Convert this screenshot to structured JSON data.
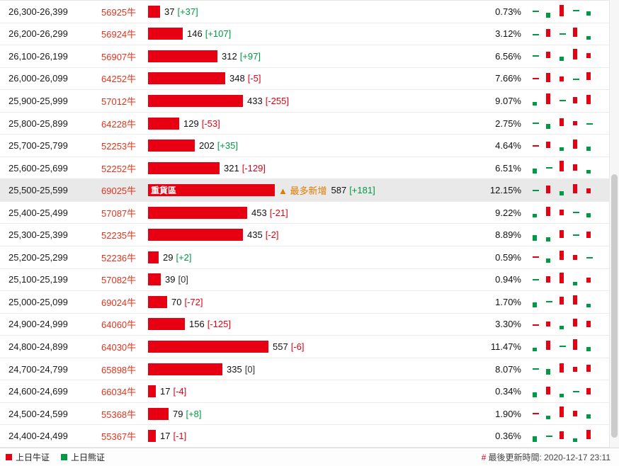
{
  "colors": {
    "bull_red": "#e60012",
    "bear_green": "#009944",
    "change_up": "#009944",
    "change_down": "#e60012",
    "change_zero": "#333333",
    "code_red": "#e2341b",
    "annotation_orange": "#e07b00",
    "highlight_row_bg": "#e9e9e9"
  },
  "table": {
    "heavy_zone_label": "重貨區",
    "max_new_label": "▲ 最多新增",
    "max_value": 587,
    "rows": [
      {
        "range": "26,300-26,399",
        "code": "56925牛",
        "value": 37,
        "change": "[+37]",
        "percent": "0.73%",
        "highlight": false,
        "spark": [
          {
            "c": "g",
            "y": 12,
            "h": 2
          },
          {
            "c": "g",
            "y": 15,
            "h": 7
          },
          {
            "c": "r",
            "y": 4,
            "h": 16
          },
          {
            "c": "g",
            "y": 11,
            "h": 2
          },
          {
            "c": "g",
            "y": 13,
            "h": 6
          }
        ]
      },
      {
        "range": "26,200-26,299",
        "code": "56924牛",
        "value": 146,
        "change": "[+107]",
        "percent": "3.12%",
        "highlight": false,
        "spark": [
          {
            "c": "g",
            "y": 13,
            "h": 2
          },
          {
            "c": "r",
            "y": 6,
            "h": 11
          },
          {
            "c": "g",
            "y": 12,
            "h": 2
          },
          {
            "c": "r",
            "y": 4,
            "h": 13
          },
          {
            "c": "g",
            "y": 16,
            "h": 5
          }
        ]
      },
      {
        "range": "26,100-26,199",
        "code": "56907牛",
        "value": 312,
        "change": "[+97]",
        "percent": "6.56%",
        "highlight": false,
        "spark": [
          {
            "c": "g",
            "y": 12,
            "h": 2
          },
          {
            "c": "r",
            "y": 7,
            "h": 9
          },
          {
            "c": "g",
            "y": 14,
            "h": 6
          },
          {
            "c": "r",
            "y": 3,
            "h": 15
          },
          {
            "c": "r",
            "y": 9,
            "h": 7
          }
        ]
      },
      {
        "range": "26,000-26,099",
        "code": "64252牛",
        "value": 348,
        "change": "[-5]",
        "percent": "7.66%",
        "highlight": false,
        "spark": [
          {
            "c": "r",
            "y": 12,
            "h": 2
          },
          {
            "c": "r",
            "y": 5,
            "h": 13
          },
          {
            "c": "r",
            "y": 10,
            "h": 7
          },
          {
            "c": "g",
            "y": 13,
            "h": 2
          },
          {
            "c": "r",
            "y": 4,
            "h": 11
          }
        ]
      },
      {
        "range": "25,900-25,999",
        "code": "57012牛",
        "value": 433,
        "change": "[-255]",
        "percent": "9.07%",
        "highlight": false,
        "spark": [
          {
            "c": "g",
            "y": 15,
            "h": 5
          },
          {
            "c": "r",
            "y": 3,
            "h": 15
          },
          {
            "c": "g",
            "y": 12,
            "h": 2
          },
          {
            "c": "r",
            "y": 8,
            "h": 9
          },
          {
            "c": "r",
            "y": 5,
            "h": 13
          }
        ]
      },
      {
        "range": "25,800-25,899",
        "code": "64228牛",
        "value": 129,
        "change": "[-53]",
        "percent": "2.75%",
        "highlight": false,
        "spark": [
          {
            "c": "g",
            "y": 12,
            "h": 2
          },
          {
            "c": "g",
            "y": 14,
            "h": 7
          },
          {
            "c": "r",
            "y": 6,
            "h": 11
          },
          {
            "c": "r",
            "y": 10,
            "h": 6
          },
          {
            "c": "g",
            "y": 13,
            "h": 2
          }
        ]
      },
      {
        "range": "25,700-25,799",
        "code": "52253牛",
        "value": 202,
        "change": "[+35]",
        "percent": "4.64%",
        "highlight": false,
        "spark": [
          {
            "c": "r",
            "y": 12,
            "h": 2
          },
          {
            "c": "r",
            "y": 7,
            "h": 9
          },
          {
            "c": "g",
            "y": 15,
            "h": 5
          },
          {
            "c": "r",
            "y": 4,
            "h": 13
          },
          {
            "c": "g",
            "y": 14,
            "h": 6
          }
        ]
      },
      {
        "range": "25,600-25,699",
        "code": "52252牛",
        "value": 321,
        "change": "[-129]",
        "percent": "6.51%",
        "highlight": false,
        "spark": [
          {
            "c": "g",
            "y": 14,
            "h": 7
          },
          {
            "c": "g",
            "y": 12,
            "h": 2
          },
          {
            "c": "r",
            "y": 3,
            "h": 15
          },
          {
            "c": "r",
            "y": 8,
            "h": 9
          },
          {
            "c": "g",
            "y": 16,
            "h": 5
          }
        ]
      },
      {
        "range": "25,500-25,599",
        "code": "69025牛",
        "value": 587,
        "change": "[+181]",
        "percent": "12.15%",
        "highlight": true,
        "spark": [
          {
            "c": "g",
            "y": 12,
            "h": 2
          },
          {
            "c": "r",
            "y": 6,
            "h": 11
          },
          {
            "c": "g",
            "y": 14,
            "h": 6
          },
          {
            "c": "r",
            "y": 4,
            "h": 13
          },
          {
            "c": "r",
            "y": 10,
            "h": 7
          }
        ]
      },
      {
        "range": "25,400-25,499",
        "code": "57087牛",
        "value": 453,
        "change": "[-21]",
        "percent": "9.22%",
        "highlight": false,
        "spark": [
          {
            "c": "g",
            "y": 15,
            "h": 5
          },
          {
            "c": "r",
            "y": 5,
            "h": 13
          },
          {
            "c": "r",
            "y": 9,
            "h": 8
          },
          {
            "c": "g",
            "y": 12,
            "h": 2
          },
          {
            "c": "g",
            "y": 14,
            "h": 6
          }
        ]
      },
      {
        "range": "25,300-25,399",
        "code": "52235牛",
        "value": 435,
        "change": "[-2]",
        "percent": "8.89%",
        "highlight": false,
        "spark": [
          {
            "c": "g",
            "y": 13,
            "h": 8
          },
          {
            "c": "g",
            "y": 16,
            "h": 6
          },
          {
            "c": "r",
            "y": 6,
            "h": 11
          },
          {
            "c": "g",
            "y": 12,
            "h": 2
          },
          {
            "c": "r",
            "y": 8,
            "h": 9
          }
        ]
      },
      {
        "range": "25,200-25,299",
        "code": "52236牛",
        "value": 29,
        "change": "[+2]",
        "percent": "0.59%",
        "highlight": false,
        "spark": [
          {
            "c": "r",
            "y": 12,
            "h": 2
          },
          {
            "c": "g",
            "y": 15,
            "h": 6
          },
          {
            "c": "r",
            "y": 4,
            "h": 13
          },
          {
            "c": "r",
            "y": 10,
            "h": 7
          },
          {
            "c": "g",
            "y": 13,
            "h": 2
          }
        ]
      },
      {
        "range": "25,100-25,199",
        "code": "57082牛",
        "value": 39,
        "change": "[0]",
        "percent": "0.94%",
        "highlight": false,
        "spark": [
          {
            "c": "g",
            "y": 12,
            "h": 2
          },
          {
            "c": "r",
            "y": 8,
            "h": 9
          },
          {
            "c": "r",
            "y": 3,
            "h": 15
          },
          {
            "c": "g",
            "y": 16,
            "h": 5
          },
          {
            "c": "r",
            "y": 10,
            "h": 7
          }
        ]
      },
      {
        "range": "25,000-25,099",
        "code": "69024牛",
        "value": 70,
        "change": "[-72]",
        "percent": "1.70%",
        "highlight": false,
        "spark": [
          {
            "c": "g",
            "y": 14,
            "h": 7
          },
          {
            "c": "g",
            "y": 12,
            "h": 2
          },
          {
            "c": "r",
            "y": 6,
            "h": 11
          },
          {
            "c": "r",
            "y": 4,
            "h": 13
          },
          {
            "c": "g",
            "y": 16,
            "h": 5
          }
        ]
      },
      {
        "range": "24,900-24,999",
        "code": "64060牛",
        "value": 156,
        "change": "[-125]",
        "percent": "3.30%",
        "highlight": false,
        "spark": [
          {
            "c": "r",
            "y": 13,
            "h": 2
          },
          {
            "c": "r",
            "y": 9,
            "h": 7
          },
          {
            "c": "g",
            "y": 15,
            "h": 5
          },
          {
            "c": "r",
            "y": 5,
            "h": 11
          },
          {
            "c": "r",
            "y": 8,
            "h": 9
          }
        ]
      },
      {
        "range": "24,800-24,899",
        "code": "64030牛",
        "value": 557,
        "change": "[-6]",
        "percent": "11.47%",
        "highlight": false,
        "spark": [
          {
            "c": "g",
            "y": 15,
            "h": 5
          },
          {
            "c": "r",
            "y": 5,
            "h": 13
          },
          {
            "c": "g",
            "y": 12,
            "h": 2
          },
          {
            "c": "r",
            "y": 3,
            "h": 15
          },
          {
            "c": "g",
            "y": 14,
            "h": 6
          }
        ]
      },
      {
        "range": "24,700-24,799",
        "code": "65898牛",
        "value": 335,
        "change": "[0]",
        "percent": "8.07%",
        "highlight": false,
        "spark": [
          {
            "c": "g",
            "y": 12,
            "h": 2
          },
          {
            "c": "g",
            "y": 13,
            "h": 8
          },
          {
            "c": "r",
            "y": 5,
            "h": 13
          },
          {
            "c": "r",
            "y": 10,
            "h": 7
          },
          {
            "c": "r",
            "y": 7,
            "h": 10
          }
        ]
      },
      {
        "range": "24,600-24,699",
        "code": "66034牛",
        "value": 17,
        "change": "[-4]",
        "percent": "0.34%",
        "highlight": false,
        "spark": [
          {
            "c": "g",
            "y": 14,
            "h": 7
          },
          {
            "c": "r",
            "y": 6,
            "h": 11
          },
          {
            "c": "g",
            "y": 16,
            "h": 5
          },
          {
            "c": "g",
            "y": 12,
            "h": 2
          },
          {
            "c": "r",
            "y": 8,
            "h": 9
          }
        ]
      },
      {
        "range": "24,500-24,599",
        "code": "55368牛",
        "value": 79,
        "change": "[+8]",
        "percent": "1.90%",
        "highlight": false,
        "spark": [
          {
            "c": "r",
            "y": 12,
            "h": 2
          },
          {
            "c": "g",
            "y": 16,
            "h": 5
          },
          {
            "c": "r",
            "y": 3,
            "h": 15
          },
          {
            "c": "r",
            "y": 9,
            "h": 8
          },
          {
            "c": "g",
            "y": 14,
            "h": 6
          }
        ]
      },
      {
        "range": "24,400-24,499",
        "code": "55367牛",
        "value": 17,
        "change": "[-1]",
        "percent": "0.36%",
        "highlight": false,
        "spark": [
          {
            "c": "g",
            "y": 13,
            "h": 8
          },
          {
            "c": "g",
            "y": 12,
            "h": 2
          },
          {
            "c": "r",
            "y": 6,
            "h": 11
          },
          {
            "c": "g",
            "y": 16,
            "h": 5
          },
          {
            "c": "r",
            "y": 4,
            "h": 13
          }
        ]
      }
    ]
  },
  "footer": {
    "legend": [
      {
        "label": "上日牛证",
        "color": "#e60012"
      },
      {
        "label": "上日熊证",
        "color": "#009944"
      }
    ],
    "hash": "#",
    "updated": "最後更新時間: 2020-12-17 23:11"
  },
  "chart_data": {
    "type": "bar",
    "orientation": "horizontal",
    "title": "",
    "categories": [
      "26,300-26,399",
      "26,200-26,299",
      "26,100-26,199",
      "26,000-26,099",
      "25,900-25,999",
      "25,800-25,899",
      "25,700-25,799",
      "25,600-25,699",
      "25,500-25,599",
      "25,400-25,499",
      "25,300-25,399",
      "25,200-25,299",
      "25,100-25,199",
      "25,000-25,099",
      "24,900-24,999",
      "24,800-24,899",
      "24,700-24,799",
      "24,600-24,699",
      "24,500-24,599",
      "24,400-24,499"
    ],
    "values": [
      37,
      146,
      312,
      348,
      433,
      129,
      202,
      321,
      587,
      453,
      435,
      29,
      39,
      70,
      156,
      557,
      335,
      17,
      79,
      17
    ],
    "changes": [
      37,
      107,
      97,
      -5,
      -255,
      -53,
      35,
      -129,
      181,
      -21,
      -2,
      2,
      0,
      -72,
      -125,
      -6,
      0,
      -4,
      8,
      -1
    ],
    "percents": [
      0.73,
      3.12,
      6.56,
      7.66,
      9.07,
      2.75,
      4.64,
      6.51,
      12.15,
      9.22,
      8.89,
      0.59,
      0.94,
      1.7,
      3.3,
      11.47,
      8.07,
      0.34,
      1.9,
      0.36
    ],
    "codes": [
      "56925牛",
      "56924牛",
      "56907牛",
      "64252牛",
      "57012牛",
      "64228牛",
      "52253牛",
      "52252牛",
      "69025牛",
      "57087牛",
      "52235牛",
      "52236牛",
      "57082牛",
      "69024牛",
      "64060牛",
      "64030牛",
      "65898牛",
      "66034牛",
      "55368牛",
      "55367牛"
    ],
    "annotations": [
      "重貨區 (25,500-25,599)",
      "▲ 最多新增 587 [+181] (25,500-25,599)"
    ],
    "legend_entries": [
      "上日牛证",
      "上日熊证"
    ],
    "xlim": [
      0,
      600
    ]
  }
}
